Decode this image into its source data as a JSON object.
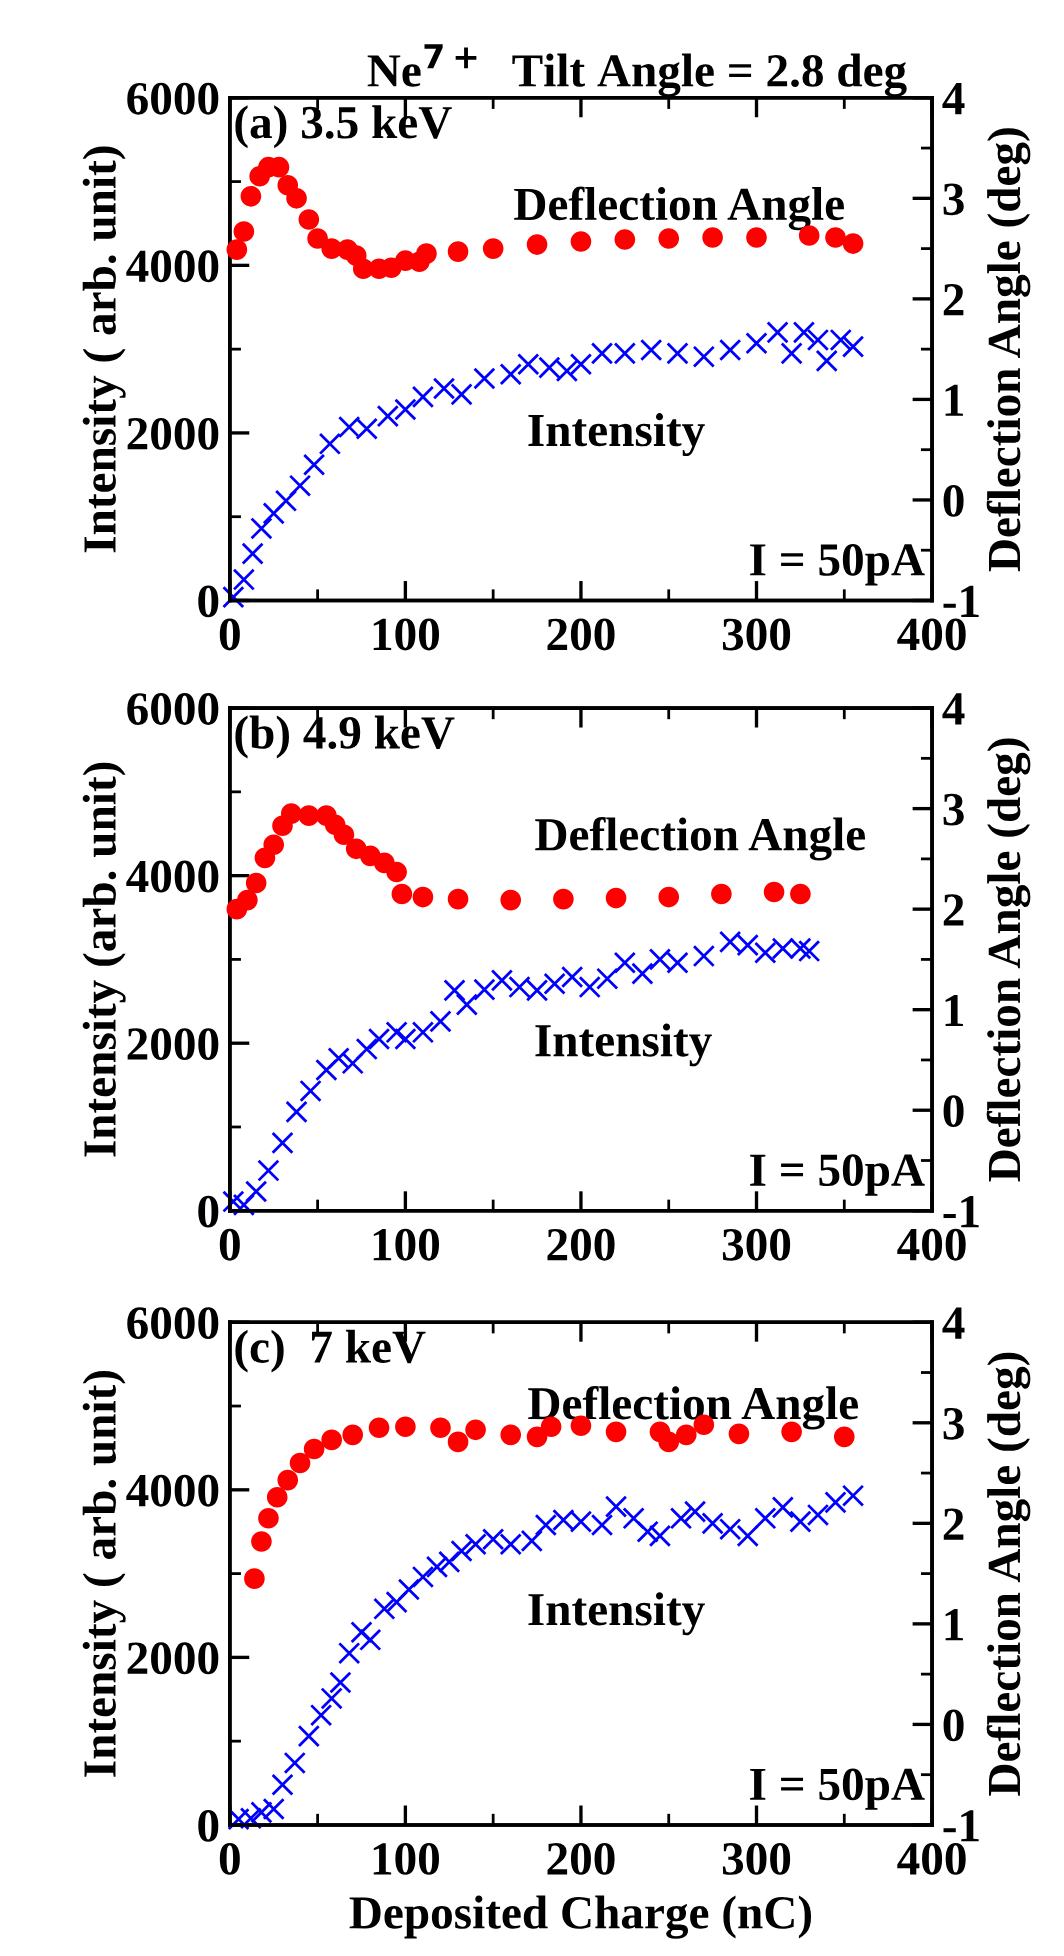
{
  "chart_data": [
    {
      "type": "scatter",
      "title": "Ne$^{7+}$  Tilt Angle = 2.8 deg",
      "ylabel": "Intensity ( arb. unit)",
      "y2label": "Deflection Angle (deg)",
      "annotations": [
        "(a) 3.5 keV",
        "I = 50pA"
      ],
      "xlim": [
        0,
        400
      ],
      "xticks": [
        0,
        {
          "value": 50,
          "label": null
        },
        100,
        {
          "value": 150,
          "label": null
        },
        200,
        {
          "value": 250,
          "label": null
        },
        300,
        {
          "value": 350,
          "label": null
        },
        400
      ],
      "ylim": [
        0,
        6000
      ],
      "yticks": [
        0,
        {
          "value": 1000,
          "label": null
        },
        2000,
        {
          "value": 3000,
          "label": null
        },
        4000,
        {
          "value": 5000,
          "label": null
        },
        6000
      ],
      "y2lim": [
        -1,
        4
      ],
      "y2ticks": [
        -1,
        {
          "value": -0.5,
          "label": null
        },
        0,
        {
          "value": 0.5,
          "label": null
        },
        1,
        {
          "value": 1.5,
          "label": null
        },
        2,
        {
          "value": 2.5,
          "label": null
        },
        3,
        {
          "value": 3.5,
          "label": null
        },
        4
      ],
      "series": [
        {
          "name": "Deflection Angle",
          "type": "scatter",
          "axis": "y2",
          "color": "#ff0000",
          "marker": "circle",
          "x": [
            4,
            8,
            12,
            17,
            22,
            28,
            33,
            38,
            45,
            50,
            58,
            67,
            72,
            76,
            85,
            92,
            100,
            108,
            112,
            130,
            150,
            175,
            200,
            225,
            250,
            275,
            300,
            330,
            345,
            355
          ],
          "values": [
            2.49,
            2.67,
            3.02,
            3.22,
            3.31,
            3.31,
            3.13,
            3.0,
            2.79,
            2.6,
            2.5,
            2.49,
            2.43,
            2.3,
            2.3,
            2.31,
            2.38,
            2.37,
            2.45,
            2.47,
            2.5,
            2.54,
            2.57,
            2.59,
            2.6,
            2.61,
            2.61,
            2.63,
            2.61,
            2.55
          ]
        },
        {
          "name": "Intensity",
          "type": "scatter",
          "color": "#0000ff",
          "marker": "cross",
          "x": [
            2,
            8,
            13,
            18,
            25,
            32,
            40,
            48,
            57,
            68,
            78,
            90,
            100,
            110,
            122,
            132,
            145,
            160,
            170,
            182,
            192,
            200,
            212,
            225,
            240,
            255,
            270,
            285,
            300,
            312,
            320,
            327,
            335,
            340,
            348,
            355
          ],
          "values": [
            40,
            250,
            560,
            860,
            1040,
            1190,
            1370,
            1620,
            1870,
            2070,
            2050,
            2200,
            2280,
            2430,
            2530,
            2460,
            2650,
            2700,
            2820,
            2780,
            2740,
            2820,
            2950,
            2950,
            2990,
            2950,
            2910,
            2990,
            3070,
            3200,
            2950,
            3200,
            3110,
            2860,
            3110,
            3030
          ]
        }
      ]
    },
    {
      "type": "scatter",
      "ylabel": "Intensity (arb. unit)",
      "y2label": "Deflection Angle (deg)",
      "annotations": [
        "(b) 4.9 keV",
        "I = 50pA"
      ],
      "xlim": [
        0,
        400
      ],
      "xticks": [
        0,
        {
          "value": 50,
          "label": null
        },
        100,
        {
          "value": 150,
          "label": null
        },
        200,
        {
          "value": 250,
          "label": null
        },
        300,
        {
          "value": 350,
          "label": null
        },
        400
      ],
      "ylim": [
        0,
        6000
      ],
      "yticks": [
        0,
        {
          "value": 1000,
          "label": null
        },
        2000,
        {
          "value": 3000,
          "label": null
        },
        4000,
        {
          "value": 5000,
          "label": null
        },
        6000
      ],
      "y2lim": [
        -1,
        4
      ],
      "y2ticks": [
        -1,
        {
          "value": -0.5,
          "label": null
        },
        0,
        {
          "value": 0.5,
          "label": null
        },
        1,
        {
          "value": 1.5,
          "label": null
        },
        2,
        {
          "value": 2.5,
          "label": null
        },
        3,
        {
          "value": 3.5,
          "label": null
        },
        4
      ],
      "series": [
        {
          "name": "Deflection Angle",
          "type": "scatter",
          "axis": "y2",
          "color": "#ff0000",
          "marker": "circle",
          "x": [
            4,
            10,
            15,
            20,
            25,
            30,
            35,
            45,
            55,
            60,
            65,
            72,
            80,
            88,
            95,
            98,
            110,
            130,
            160,
            190,
            220,
            250,
            280,
            310,
            325
          ],
          "values": [
            2.0,
            2.09,
            2.26,
            2.51,
            2.64,
            2.83,
            2.95,
            2.93,
            2.93,
            2.84,
            2.74,
            2.6,
            2.53,
            2.46,
            2.37,
            2.15,
            2.12,
            2.1,
            2.09,
            2.1,
            2.11,
            2.12,
            2.15,
            2.17,
            2.15
          ]
        },
        {
          "name": "Intensity",
          "type": "scatter",
          "color": "#0000ff",
          "marker": "cross",
          "x": [
            2,
            8,
            15,
            22,
            30,
            38,
            46,
            55,
            62,
            70,
            78,
            85,
            95,
            100,
            110,
            120,
            128,
            135,
            145,
            155,
            165,
            175,
            185,
            195,
            205,
            215,
            225,
            235,
            245,
            255,
            270,
            285,
            295,
            305,
            315,
            325,
            330
          ],
          "values": [
            110,
            70,
            230,
            480,
            810,
            1180,
            1430,
            1680,
            1820,
            1760,
            1930,
            2050,
            2130,
            2050,
            2130,
            2260,
            2630,
            2460,
            2640,
            2750,
            2670,
            2630,
            2710,
            2790,
            2670,
            2770,
            2960,
            2830,
            3000,
            2960,
            3040,
            3210,
            3170,
            3080,
            3130,
            3130,
            3100
          ]
        }
      ]
    },
    {
      "type": "scatter",
      "xlabel": "Deposited Charge (nC)",
      "ylabel": "Intensity ( arb. unit)",
      "y2label": "Deflection Angle (deg)",
      "annotations": [
        "(c)  7 keV",
        "I = 50pA"
      ],
      "xlim": [
        0,
        400
      ],
      "xticks": [
        0,
        {
          "value": 50,
          "label": null
        },
        100,
        {
          "value": 150,
          "label": null
        },
        200,
        {
          "value": 250,
          "label": null
        },
        300,
        {
          "value": 350,
          "label": null
        },
        400
      ],
      "ylim": [
        0,
        6000
      ],
      "yticks": [
        0,
        {
          "value": 1000,
          "label": null
        },
        2000,
        {
          "value": 3000,
          "label": null
        },
        4000,
        {
          "value": 5000,
          "label": null
        },
        6000
      ],
      "y2lim": [
        -1,
        4
      ],
      "y2ticks": [
        -1,
        {
          "value": -0.5,
          "label": null
        },
        0,
        {
          "value": 0.5,
          "label": null
        },
        1,
        {
          "value": 1.5,
          "label": null
        },
        2,
        {
          "value": 2.5,
          "label": null
        },
        3,
        {
          "value": 3.5,
          "label": null
        },
        4
      ],
      "series": [
        {
          "name": "Deflection Angle",
          "type": "scatter",
          "axis": "y2",
          "color": "#ff0000",
          "marker": "circle",
          "x": [
            14,
            18,
            22,
            27,
            33,
            40,
            48,
            58,
            70,
            85,
            100,
            120,
            130,
            140,
            160,
            175,
            183,
            200,
            220,
            245,
            250,
            260,
            270,
            290,
            320,
            350
          ],
          "values": [
            1.45,
            1.82,
            2.05,
            2.26,
            2.43,
            2.6,
            2.74,
            2.83,
            2.88,
            2.95,
            2.96,
            2.95,
            2.81,
            2.93,
            2.88,
            2.86,
            2.96,
            2.97,
            2.91,
            2.91,
            2.81,
            2.88,
            2.98,
            2.89,
            2.91,
            2.86
          ]
        },
        {
          "name": "Intensity",
          "type": "scatter",
          "color": "#0000ff",
          "marker": "cross",
          "x": [
            5,
            12,
            18,
            25,
            30,
            37,
            45,
            52,
            58,
            63,
            68,
            75,
            80,
            88,
            95,
            102,
            110,
            118,
            125,
            132,
            140,
            150,
            160,
            172,
            180,
            190,
            200,
            212,
            220,
            230,
            238,
            245,
            257,
            265,
            275,
            285,
            295,
            305,
            315,
            325,
            335,
            345,
            355
          ],
          "values": [
            70,
            80,
            150,
            190,
            480,
            740,
            1060,
            1310,
            1510,
            1700,
            2050,
            2300,
            2210,
            2580,
            2660,
            2810,
            2960,
            3080,
            3140,
            3270,
            3350,
            3410,
            3350,
            3390,
            3580,
            3640,
            3620,
            3580,
            3800,
            3660,
            3500,
            3450,
            3660,
            3740,
            3600,
            3530,
            3450,
            3660,
            3790,
            3620,
            3700,
            3850,
            3930
          ]
        }
      ]
    }
  ]
}
